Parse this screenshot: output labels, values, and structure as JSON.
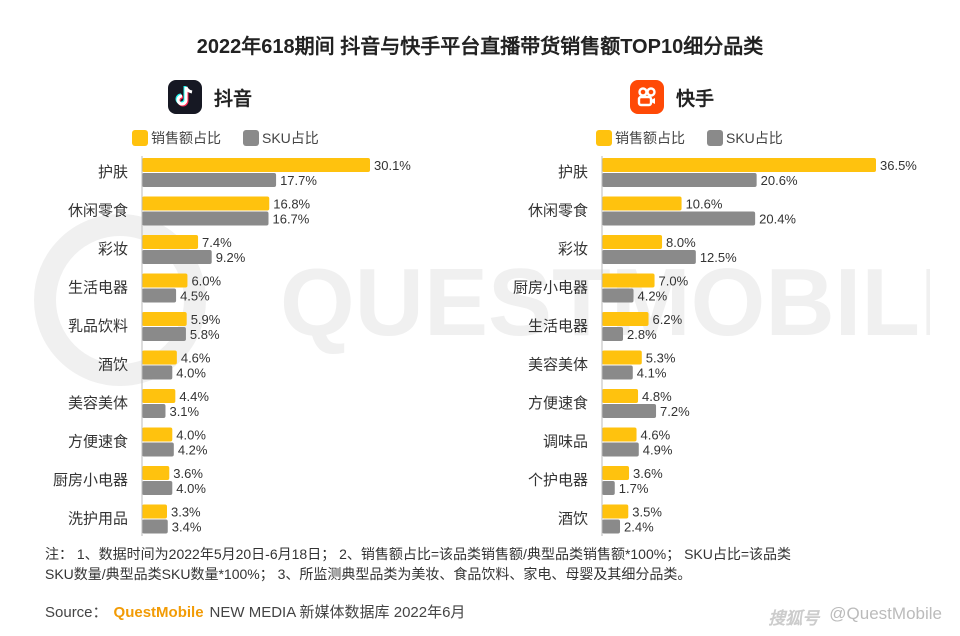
{
  "title": "2022年618期间 抖音与快手平台直播带货销售额TOP10细分品类",
  "legend": {
    "sales": "销售额占比",
    "sku": "SKU占比"
  },
  "colors": {
    "sales": "#ffc20e",
    "sku": "#8a8a8a",
    "douyin_logo": "#161823",
    "kuaishou_logo": "#ff4906"
  },
  "watermark": "QUESTMOBILE",
  "footnote": {
    "line1": "注： 1、数据时间为2022年5月20日-6月18日； 2、销售额占比=该品类销售额/典型品类销售额*100%； SKU占比=该品类",
    "line2": "SKU数量/典型品类SKU数量*100%； 3、所监测典型品类为美妆、食品饮料、家电、母婴及其细分品类。"
  },
  "source": {
    "label": "Source：",
    "brand": "QuestMobile",
    "rest": "NEW MEDIA 新媒体数据库 2022年6月"
  },
  "credit": {
    "cn": "搜狐号",
    "handle": "@QuestMobile"
  },
  "chart_data": [
    {
      "type": "bar",
      "title": "抖音",
      "orientation": "horizontal",
      "categories": [
        "护肤",
        "休闲零食",
        "彩妆",
        "生活电器",
        "乳品饮料",
        "酒饮",
        "美容美体",
        "方便速食",
        "厨房小电器",
        "洗护用品"
      ],
      "series": [
        {
          "name": "销售额占比",
          "values": [
            30.1,
            16.8,
            7.4,
            6.0,
            5.9,
            4.6,
            4.4,
            4.0,
            3.6,
            3.3
          ]
        },
        {
          "name": "SKU占比",
          "values": [
            17.7,
            16.7,
            9.2,
            4.5,
            5.8,
            4.0,
            3.1,
            4.2,
            4.0,
            3.4
          ]
        }
      ],
      "value_suffix": "%",
      "xlim": [
        0,
        30.1
      ]
    },
    {
      "type": "bar",
      "title": "快手",
      "orientation": "horizontal",
      "categories": [
        "护肤",
        "休闲零食",
        "彩妆",
        "厨房小电器",
        "生活电器",
        "美容美体",
        "方便速食",
        "调味品",
        "个护电器",
        "酒饮"
      ],
      "series": [
        {
          "name": "销售额占比",
          "values": [
            36.5,
            10.6,
            8.0,
            7.0,
            6.2,
            5.3,
            4.8,
            4.6,
            3.6,
            3.5
          ]
        },
        {
          "name": "SKU占比",
          "values": [
            20.6,
            20.4,
            12.5,
            4.2,
            2.8,
            4.1,
            7.2,
            4.9,
            1.7,
            2.4
          ]
        }
      ],
      "value_suffix": "%",
      "xlim": [
        0,
        36.5
      ]
    }
  ]
}
